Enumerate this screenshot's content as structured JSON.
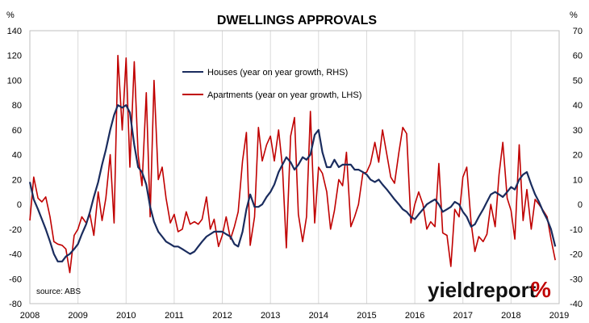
{
  "chart_data": {
    "type": "line",
    "title": "DWELLINGS APPROVALS",
    "left_axis_unit": "%",
    "right_axis_unit": "%",
    "left_axis": {
      "min": -80,
      "max": 140,
      "step": 20,
      "ticks": [
        "-80",
        "-60",
        "-40",
        "-20",
        "0",
        "20",
        "40",
        "60",
        "80",
        "100",
        "120",
        "140"
      ]
    },
    "right_axis": {
      "min": -40,
      "max": 70,
      "step": 10,
      "ticks": [
        "-40",
        "-30",
        "-20",
        "-10",
        "0",
        "10",
        "20",
        "30",
        "40",
        "50",
        "60",
        "70"
      ]
    },
    "x_axis": {
      "start": 2008,
      "end": 2019,
      "labels": [
        "2008",
        "2009",
        "2010",
        "2011",
        "2012",
        "2013",
        "2014",
        "2015",
        "2016",
        "2017",
        "2018",
        "2019"
      ]
    },
    "grid": "vertical year lines",
    "legend_position": "top-center",
    "series": [
      {
        "name": "Houses (year on year growth, RHS)",
        "axis": "right",
        "color": "#1a2c5e",
        "x": [
          2008.0,
          2008.08,
          2008.17,
          2008.25,
          2008.33,
          2008.42,
          2008.5,
          2008.58,
          2008.67,
          2008.75,
          2008.83,
          2008.92,
          2009.0,
          2009.08,
          2009.17,
          2009.25,
          2009.33,
          2009.42,
          2009.5,
          2009.58,
          2009.67,
          2009.75,
          2009.83,
          2009.92,
          2010.0,
          2010.08,
          2010.17,
          2010.25,
          2010.33,
          2010.42,
          2010.5,
          2010.58,
          2010.67,
          2010.75,
          2010.83,
          2010.92,
          2011.0,
          2011.08,
          2011.17,
          2011.25,
          2011.33,
          2011.42,
          2011.5,
          2011.58,
          2011.67,
          2011.75,
          2011.83,
          2011.92,
          2012.0,
          2012.08,
          2012.17,
          2012.25,
          2012.33,
          2012.42,
          2012.5,
          2012.58,
          2012.67,
          2012.75,
          2012.83,
          2012.92,
          2013.0,
          2013.08,
          2013.17,
          2013.25,
          2013.33,
          2013.42,
          2013.5,
          2013.58,
          2013.67,
          2013.75,
          2013.83,
          2013.92,
          2014.0,
          2014.08,
          2014.17,
          2014.25,
          2014.33,
          2014.42,
          2014.5,
          2014.58,
          2014.67,
          2014.75,
          2014.83,
          2014.92,
          2015.0,
          2015.08,
          2015.17,
          2015.25,
          2015.33,
          2015.42,
          2015.5,
          2015.58,
          2015.67,
          2015.75,
          2015.83,
          2015.92,
          2016.0,
          2016.08,
          2016.17,
          2016.25,
          2016.33,
          2016.42,
          2016.5,
          2016.58,
          2016.67,
          2016.75,
          2016.83,
          2016.92,
          2017.0,
          2017.08,
          2017.17,
          2017.25,
          2017.33,
          2017.42,
          2017.5,
          2017.58,
          2017.67,
          2017.75,
          2017.83,
          2017.92,
          2018.0,
          2018.08,
          2018.17,
          2018.25,
          2018.33,
          2018.42,
          2018.5,
          2018.58,
          2018.67,
          2018.75,
          2018.83,
          2018.92
        ],
        "y": [
          9,
          2,
          -2,
          -6,
          -10,
          -15,
          -20,
          -23,
          -23,
          -21,
          -20,
          -18,
          -16,
          -12,
          -8,
          -3,
          3,
          9,
          16,
          22,
          30,
          36,
          40,
          39,
          40,
          37,
          24,
          15,
          13,
          8,
          -1,
          -7,
          -11,
          -13,
          -15,
          -16,
          -17,
          -17,
          -18,
          -19,
          -20,
          -19,
          -17,
          -15,
          -13,
          -12,
          -11,
          -11,
          -11,
          -12,
          -13,
          -16,
          -17,
          -11,
          -2,
          4,
          -1,
          -1,
          0,
          3,
          5,
          8,
          13,
          16,
          19,
          17,
          14,
          16,
          19,
          18,
          20,
          28,
          30,
          21,
          15,
          15,
          18,
          15,
          16,
          16,
          16,
          14,
          14,
          13,
          12,
          10,
          9,
          10,
          8,
          6,
          4,
          2,
          0,
          -2,
          -3,
          -5,
          -6,
          -4,
          -2,
          0,
          1,
          2,
          0,
          -3,
          -2,
          -1,
          1,
          0,
          -3,
          -5,
          -9,
          -8,
          -5,
          -2,
          1,
          4,
          5,
          4,
          3,
          5,
          7,
          6,
          10,
          12,
          13,
          8,
          4,
          1,
          -3,
          -6,
          -10,
          -17
        ]
      },
      {
        "name": "Apartments (year on year growth, LHS)",
        "axis": "left",
        "color": "#c00000",
        "x": [
          2008.0,
          2008.08,
          2008.17,
          2008.25,
          2008.33,
          2008.42,
          2008.5,
          2008.58,
          2008.67,
          2008.75,
          2008.83,
          2008.92,
          2009.0,
          2009.08,
          2009.17,
          2009.25,
          2009.33,
          2009.42,
          2009.5,
          2009.58,
          2009.67,
          2009.75,
          2009.83,
          2009.92,
          2010.0,
          2010.08,
          2010.17,
          2010.25,
          2010.33,
          2010.42,
          2010.5,
          2010.58,
          2010.67,
          2010.75,
          2010.83,
          2010.92,
          2011.0,
          2011.08,
          2011.17,
          2011.25,
          2011.33,
          2011.42,
          2011.5,
          2011.58,
          2011.67,
          2011.75,
          2011.83,
          2011.92,
          2012.0,
          2012.08,
          2012.17,
          2012.25,
          2012.33,
          2012.42,
          2012.5,
          2012.58,
          2012.67,
          2012.75,
          2012.83,
          2012.92,
          2013.0,
          2013.08,
          2013.17,
          2013.25,
          2013.33,
          2013.42,
          2013.5,
          2013.58,
          2013.67,
          2013.75,
          2013.83,
          2013.92,
          2014.0,
          2014.08,
          2014.17,
          2014.25,
          2014.33,
          2014.42,
          2014.5,
          2014.58,
          2014.67,
          2014.75,
          2014.83,
          2014.92,
          2015.0,
          2015.08,
          2015.17,
          2015.25,
          2015.33,
          2015.42,
          2015.5,
          2015.58,
          2015.67,
          2015.75,
          2015.83,
          2015.92,
          2016.0,
          2016.08,
          2016.17,
          2016.25,
          2016.33,
          2016.42,
          2016.5,
          2016.58,
          2016.67,
          2016.75,
          2016.83,
          2016.92,
          2017.0,
          2017.08,
          2017.17,
          2017.25,
          2017.33,
          2017.42,
          2017.5,
          2017.58,
          2017.67,
          2017.75,
          2017.83,
          2017.92,
          2018.0,
          2018.08,
          2018.17,
          2018.25,
          2018.33,
          2018.42,
          2018.5,
          2018.58,
          2018.67,
          2018.75,
          2018.83,
          2018.92
        ],
        "y": [
          -13,
          22,
          5,
          2,
          6,
          -10,
          -30,
          -32,
          -33,
          -36,
          -55,
          -25,
          -20,
          -10,
          -15,
          -8,
          -25,
          10,
          -13,
          5,
          40,
          -15,
          120,
          60,
          118,
          30,
          115,
          40,
          15,
          90,
          -10,
          100,
          20,
          30,
          5,
          -15,
          -8,
          -22,
          -20,
          -6,
          -16,
          -14,
          -16,
          -12,
          6,
          -20,
          -12,
          -34,
          -25,
          -10,
          -28,
          -18,
          -6,
          35,
          58,
          -33,
          -10,
          62,
          35,
          48,
          55,
          35,
          60,
          30,
          -35,
          55,
          70,
          -8,
          -30,
          -10,
          75,
          -15,
          30,
          25,
          10,
          -20,
          -5,
          20,
          15,
          42,
          -18,
          -10,
          0,
          25,
          26,
          33,
          50,
          34,
          60,
          40,
          22,
          17,
          42,
          62,
          57,
          -15,
          0,
          10,
          0,
          -20,
          -14,
          -18,
          33,
          -23,
          -25,
          -50,
          -4,
          -10,
          22,
          30,
          -15,
          -38,
          -26,
          -30,
          -24,
          0,
          -18,
          24,
          50,
          5,
          -5,
          -28,
          48,
          -13,
          12,
          -20,
          4,
          0,
          -5,
          -10,
          -28,
          -45
        ]
      }
    ],
    "source": "source: ABS",
    "logo_text": "yieldreport",
    "logo_symbol": "%"
  }
}
